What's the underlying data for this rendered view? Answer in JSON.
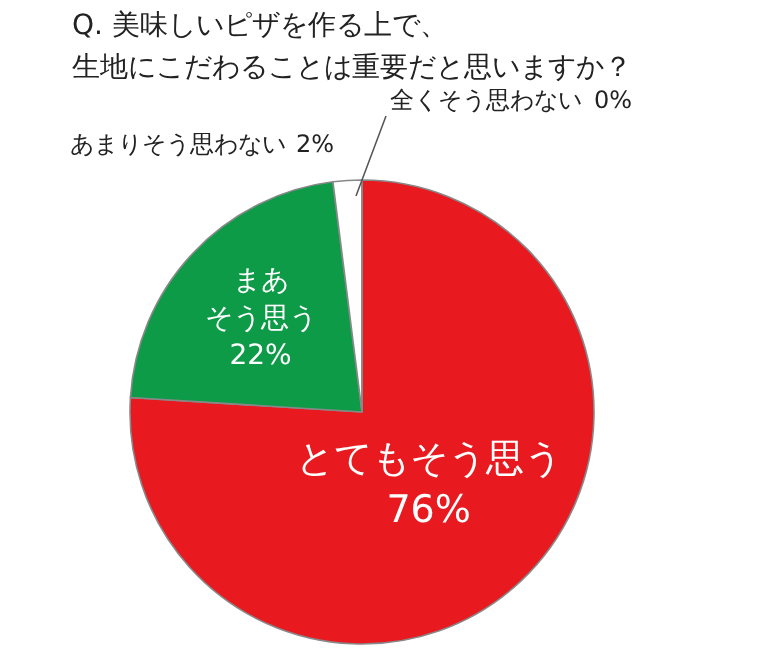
{
  "chart_data": {
    "type": "pie",
    "title": "Q. 美味しいピザを作る上で、生地にこだわることは重要だと思いますか？",
    "categories": [
      "とてもそう思う",
      "まあそう思う",
      "あまりそう思わない",
      "全くそう思わない"
    ],
    "values": [
      76,
      22,
      2,
      0
    ],
    "value_labels": [
      "76%",
      "22%",
      "2%",
      "0%"
    ],
    "colors": [
      "#e8191f",
      "#0d9b48",
      "#ffffff",
      "#ffffff"
    ]
  }
}
